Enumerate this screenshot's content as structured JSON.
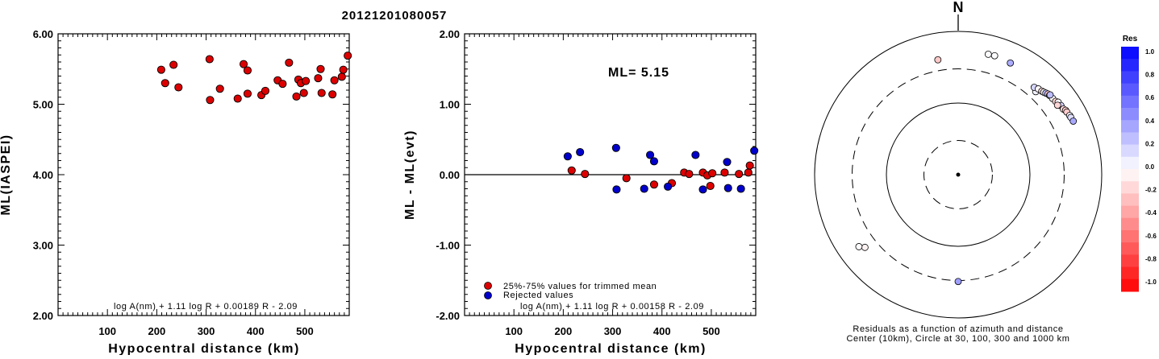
{
  "title": "20121201080057",
  "chart_data": [
    {
      "type": "scatter",
      "ylabel": "ML(IASPEI)",
      "xlabel": "Hypocentral distance (km)",
      "xlim": [
        0,
        590
      ],
      "ylim": [
        2.0,
        6.0
      ],
      "xticks": [
        "100",
        "200",
        "300",
        "400",
        "500"
      ],
      "yticks": [
        "2.00",
        "3.00",
        "4.00",
        "5.00",
        "6.00"
      ],
      "formula": "log A(nm) + 1.11 log R + 0.00189 R - 2.09",
      "points_color": "#dd0000",
      "points": [
        [
          209,
          5.49
        ],
        [
          217,
          5.3
        ],
        [
          234,
          5.56
        ],
        [
          244,
          5.24
        ],
        [
          307,
          5.64
        ],
        [
          308,
          5.06
        ],
        [
          328,
          5.22
        ],
        [
          364,
          5.08
        ],
        [
          376,
          5.57
        ],
        [
          384,
          5.48
        ],
        [
          384,
          5.15
        ],
        [
          412,
          5.13
        ],
        [
          420,
          5.19
        ],
        [
          445,
          5.34
        ],
        [
          455,
          5.29
        ],
        [
          468,
          5.59
        ],
        [
          483,
          5.11
        ],
        [
          487,
          5.35
        ],
        [
          492,
          5.3
        ],
        [
          498,
          5.16
        ],
        [
          502,
          5.33
        ],
        [
          527,
          5.37
        ],
        [
          532,
          5.5
        ],
        [
          534,
          5.16
        ],
        [
          556,
          5.14
        ],
        [
          560,
          5.34
        ],
        [
          575,
          5.39
        ],
        [
          578,
          5.49
        ],
        [
          587,
          5.69
        ]
      ]
    },
    {
      "type": "scatter",
      "ylabel": "ML - ML(evt)",
      "xlabel": "Hypocentral distance (km)",
      "xlim": [
        0,
        590
      ],
      "ylim": [
        -2.0,
        2.0
      ],
      "xticks": [
        "100",
        "200",
        "300",
        "400",
        "500"
      ],
      "yticks": [
        "-2.00",
        "-1.00",
        "0.00",
        "1.00",
        "2.00"
      ],
      "annotation": "ML= 5.15",
      "formula": "log A(nm) + 1.11 log R + 0.00158 R - 2.09",
      "legend": [
        "25%-75% values for trimmed mean",
        "Rejected values"
      ],
      "series": [
        {
          "name": "25%-75% values for trimmed mean",
          "color": "#dd0000",
          "points": [
            [
              217,
              0.06
            ],
            [
              244,
              0.01
            ],
            [
              328,
              -0.05
            ],
            [
              384,
              -0.14
            ],
            [
              420,
              -0.12
            ],
            [
              445,
              0.03
            ],
            [
              455,
              0.01
            ],
            [
              483,
              0.03
            ],
            [
              492,
              -0.01
            ],
            [
              498,
              -0.16
            ],
            [
              502,
              0.02
            ],
            [
              527,
              0.03
            ],
            [
              556,
              0.01
            ],
            [
              575,
              0.03
            ],
            [
              578,
              0.13
            ]
          ]
        },
        {
          "name": "Rejected values",
          "color": "#0000cc",
          "points": [
            [
              209,
              0.26
            ],
            [
              234,
              0.32
            ],
            [
              307,
              0.38
            ],
            [
              308,
              -0.21
            ],
            [
              364,
              -0.2
            ],
            [
              376,
              0.28
            ],
            [
              384,
              0.19
            ],
            [
              412,
              -0.17
            ],
            [
              468,
              0.28
            ],
            [
              483,
              -0.21
            ],
            [
              532,
              0.18
            ],
            [
              534,
              -0.19
            ],
            [
              560,
              -0.2
            ],
            [
              587,
              0.34
            ]
          ]
        }
      ]
    },
    {
      "type": "polar-scatter",
      "north_label": "N",
      "caption_line1": "Residuals as a function of azimuth and distance",
      "caption_line2": "Center (10km), Circle at 30, 100, 300 and 1000 km",
      "rings_km": [
        30,
        100,
        300,
        1000
      ],
      "points": [
        [
          43,
          384,
          0.06
        ],
        [
          41,
          412,
          0.17
        ],
        [
          43,
          434,
          -0.03
        ],
        [
          45,
          445,
          -0.12
        ],
        [
          46,
          455,
          0.01
        ],
        [
          47,
          468,
          0.28
        ],
        [
          48,
          483,
          -0.21
        ],
        [
          49,
          487,
          0.03
        ],
        [
          51,
          492,
          -0.01
        ],
        [
          49,
          498,
          0.26
        ],
        [
          53,
          502,
          -0.16
        ],
        [
          54,
          527,
          0.02
        ],
        [
          56,
          532,
          0.18
        ],
        [
          58,
          534,
          -0.14
        ],
        [
          59,
          556,
          -0.19
        ],
        [
          60,
          560,
          -0.2
        ],
        [
          62,
          575,
          0.03
        ],
        [
          63,
          578,
          0.13
        ],
        [
          65,
          587,
          0.34
        ],
        [
          55,
          490,
          -0.16
        ],
        [
          17,
          545,
          0.01
        ],
        [
          14,
          540,
          0.01
        ],
        [
          25,
          525,
          0.32
        ],
        [
          350,
          425,
          -0.21
        ],
        [
          180,
          310,
          0.38
        ],
        [
          232,
          445,
          -0.05
        ],
        [
          234,
          512,
          0.01
        ]
      ],
      "colorbar": {
        "label": "Res",
        "ticks": [
          "1.0",
          "0.8",
          "0.6",
          "0.4",
          "0.2",
          "0.0",
          "-0.2",
          "-0.4",
          "-0.6",
          "-0.8",
          "-1.0"
        ]
      }
    }
  ]
}
